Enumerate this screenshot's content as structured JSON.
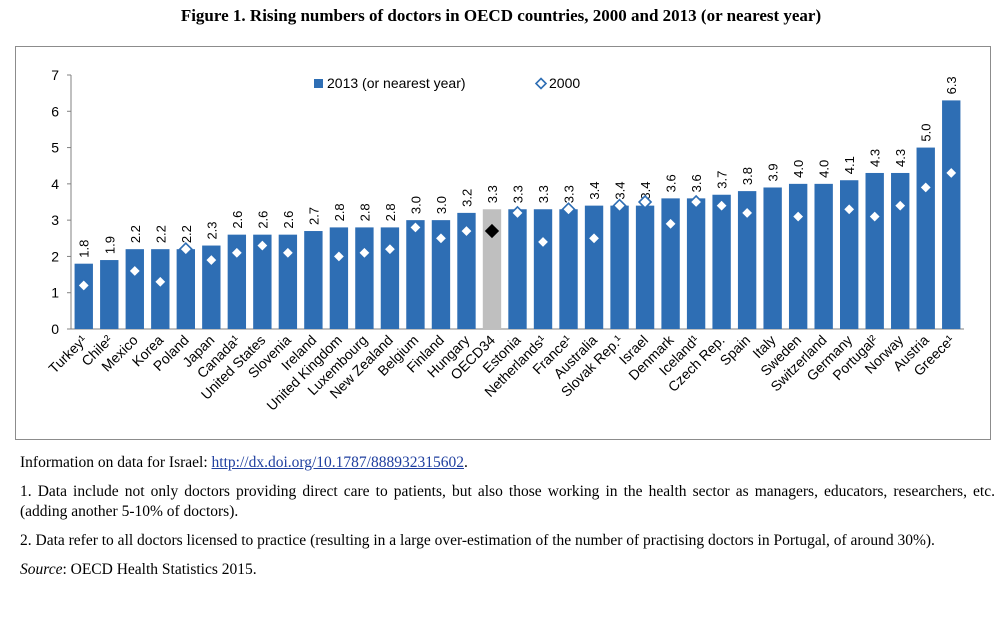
{
  "title": "Figure 1. Rising numbers of doctors in OECD countries, 2000 and 2013 (or nearest year)",
  "colors": {
    "bar": "#2e6eb4",
    "oecd_bar": "#bfbfbf",
    "marker_fill": "#ffffff",
    "marker_stroke": "#2e6eb4",
    "oecd_marker": "#000000"
  },
  "chart_data": {
    "type": "bar",
    "ylim": [
      0,
      7
    ],
    "yticks": [
      "0",
      "1",
      "2",
      "3",
      "4",
      "5",
      "6",
      "7"
    ],
    "legend_position": "top-left",
    "grid": false,
    "categories": [
      "Turkey¹",
      "Chile²",
      "Mexico",
      "Korea",
      "Poland",
      "Japan",
      "Canada¹",
      "United States",
      "Slovenia",
      "Ireland",
      "United Kingdom",
      "Luxembourg",
      "New Zealand",
      "Belgium",
      "Finland",
      "Hungary",
      "OECD34",
      "Estonia",
      "Netherlands¹",
      "France¹",
      "Australia",
      "Slovak Rep.¹",
      "Israel",
      "Denmark",
      "Iceland¹",
      "Czech Rep.",
      "Spain",
      "Italy",
      "Sweden",
      "Switzerland",
      "Germany",
      "Portugal²",
      "Norway",
      "Austria",
      "Greece¹"
    ],
    "series": [
      {
        "name": "2013 (or nearest year)",
        "type": "bar",
        "values": [
          1.8,
          1.9,
          2.2,
          2.2,
          2.2,
          2.3,
          2.6,
          2.6,
          2.6,
          2.7,
          2.8,
          2.8,
          2.8,
          3.0,
          3.0,
          3.2,
          3.3,
          3.3,
          3.3,
          3.3,
          3.4,
          3.4,
          3.4,
          3.6,
          3.6,
          3.7,
          3.8,
          3.9,
          4.0,
          4.0,
          4.1,
          4.3,
          4.3,
          5.0,
          6.3
        ],
        "labels": [
          "1.8",
          "1.9",
          "2.2",
          "2.2",
          "2.2",
          "2.3",
          "2.6",
          "2.6",
          "2.6",
          "2.7",
          "2.8",
          "2.8",
          "2.8",
          "3.0",
          "3.0",
          "3.2",
          "3.3",
          "3.3",
          "3.3",
          "3.3",
          "3.4",
          "3.4",
          "3.4",
          "3.6",
          "3.6",
          "3.7",
          "3.8",
          "3.9",
          "4.0",
          "4.0",
          "4.1",
          "4.3",
          "4.3",
          "5.0",
          "6.3"
        ]
      },
      {
        "name": "2000",
        "type": "marker",
        "values": [
          1.2,
          null,
          1.6,
          1.3,
          2.2,
          1.9,
          2.1,
          2.3,
          2.1,
          null,
          2.0,
          2.1,
          2.2,
          2.8,
          2.5,
          2.7,
          2.7,
          3.2,
          2.4,
          3.3,
          2.5,
          3.4,
          3.5,
          2.9,
          3.5,
          3.4,
          3.2,
          null,
          3.1,
          null,
          3.3,
          3.1,
          3.4,
          3.9,
          4.3
        ]
      }
    ],
    "highlight_category": "OECD34"
  },
  "notes": {
    "israel_prefix": "Information on data for Israel: ",
    "israel_link": "http://dx.doi.org/10.1787/888932315602",
    "israel_suffix": ".",
    "note1": "1. Data include not only doctors providing direct care to patients, but also those working in the health sector as managers, educators, researchers, etc. (adding another 5-10% of doctors).",
    "note2": "2. Data refer to all doctors licensed to practice (resulting in a large over-estimation of the number of practising doctors in Portugal, of around 30%).",
    "source_label": "Source",
    "source_text": ": OECD Health Statistics 2015."
  }
}
